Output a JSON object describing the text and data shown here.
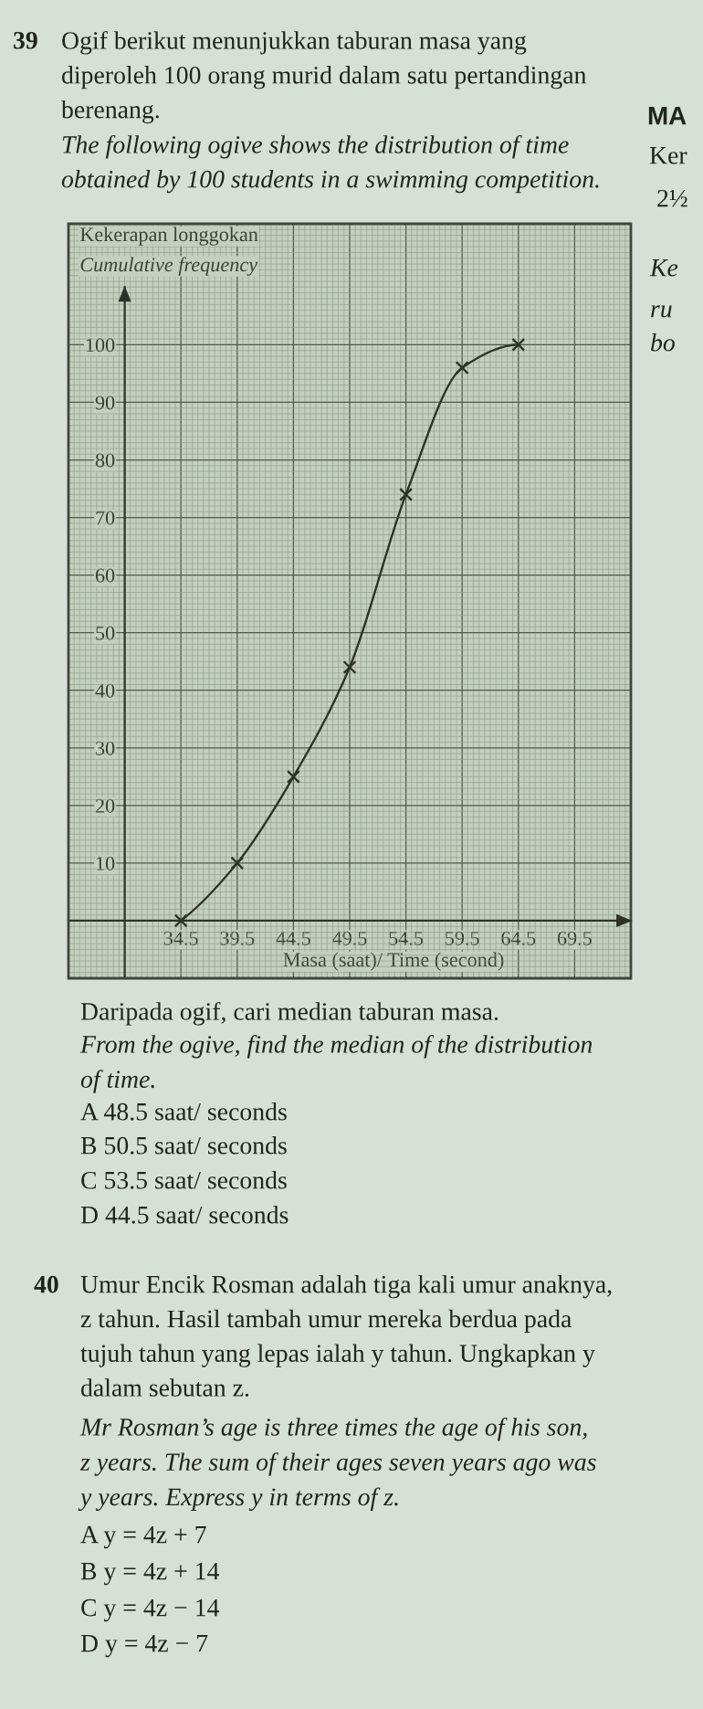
{
  "chart_data": {
    "type": "line",
    "title": "Ogif berikut menunjukkan taburan masa yang\ndiperoleh 100 orang murid dalam satu pertandingan\nberenang.",
    "subtitle": "The following ogive shows the distribution of time\nobtained by 100 students in a swimming competition.",
    "xlabel": "Masa (saat)/ Time (second)",
    "ylabel": "Kekerapan longgokan\nCumulative frequency",
    "x": [
      34.5,
      39.5,
      44.5,
      49.5,
      54.5,
      59.5,
      64.5
    ],
    "series": [
      {
        "color": "#2b3326",
        "values": [
          0,
          10,
          25,
          44,
          74,
          96,
          100
        ]
      }
    ],
    "xlim": [
      24.5,
      74.5
    ],
    "ylim": [
      -10,
      121
    ],
    "xticks": [
      34.5,
      39.5,
      44.5,
      49.5,
      54.5,
      59.5,
      64.5,
      69.5
    ],
    "yticks": [
      10,
      20,
      30,
      40,
      50,
      60,
      70,
      80,
      90,
      100
    ],
    "grid": true,
    "marker": "cross",
    "line_style": "solid",
    "annotations": [
      "39",
      "MA",
      "Ker",
      "2½",
      "Ke",
      "ru",
      "bo",
      "Daripada ogif, cari median taburan masa.",
      "From the ogive, find the median of the distribution\nof time.",
      "A 48.5 saat/ seconds",
      "B 50.5 saat/ seconds",
      "C 53.5 saat/ seconds",
      "D 44.5 saat/ seconds",
      "40",
      "Umur Encik Rosman adalah tiga kali umur anaknya,\nz tahun. Hasil tambah umur mereka berdua pada\ntujuh tahun yang lepas ialah y tahun. Ungkapkan y\ndalam sebutan z.",
      "Mr Rosman’s age is three times the age of his son,\nz years. The sum of their ages seven years ago was\ny years. Express y in terms of z.",
      "A y = 4z + 7",
      "B y = 4z + 14",
      "C y = 4z − 14",
      "D y = 4z − 7"
    ]
  }
}
